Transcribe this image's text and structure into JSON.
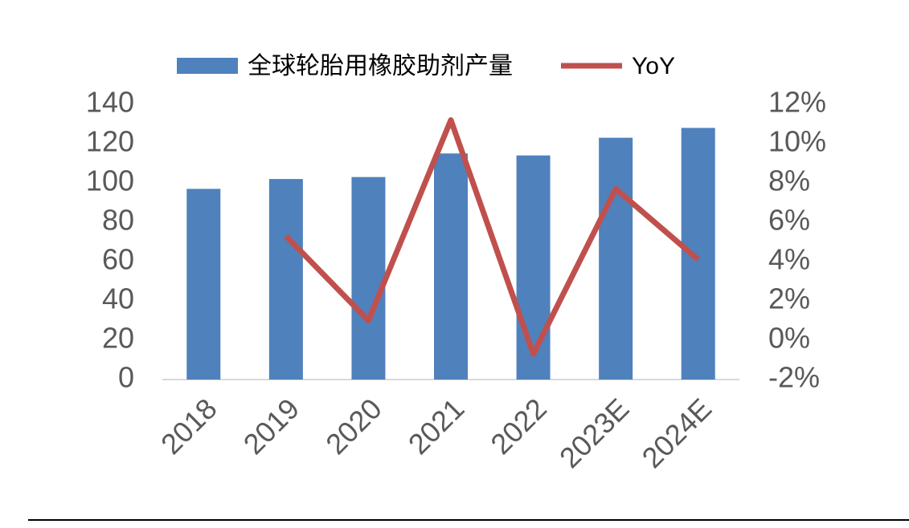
{
  "chart_data": {
    "type": "bar",
    "categories": [
      "2018",
      "2019",
      "2020",
      "2021",
      "2022",
      "2023E",
      "2024E"
    ],
    "series": [
      {
        "name": "全球轮胎用橡胶助剂产量",
        "type": "bar",
        "axis": "y",
        "color": "#4f81bd",
        "values": [
          97,
          102,
          103,
          115,
          114,
          123,
          128
        ]
      },
      {
        "name": "YoY",
        "type": "line",
        "axis": "y2",
        "color": "#c0504d",
        "values": [
          null,
          5.3,
          1.0,
          11.2,
          -0.7,
          7.7,
          4.1
        ]
      }
    ],
    "ylim": [
      0,
      140
    ],
    "yticks": [
      0,
      20,
      40,
      60,
      80,
      100,
      120,
      140
    ],
    "y2lim": [
      -2,
      12
    ],
    "y2ticks": [
      {
        "value": -2,
        "label": "-2%"
      },
      {
        "value": 0,
        "label": "0%"
      },
      {
        "value": 2,
        "label": "2%"
      },
      {
        "value": 4,
        "label": "4%"
      },
      {
        "value": 6,
        "label": "6%"
      },
      {
        "value": 8,
        "label": "8%"
      },
      {
        "value": 10,
        "label": "10%"
      },
      {
        "value": 12,
        "label": "12%"
      }
    ],
    "grid": false,
    "legend": "top"
  }
}
